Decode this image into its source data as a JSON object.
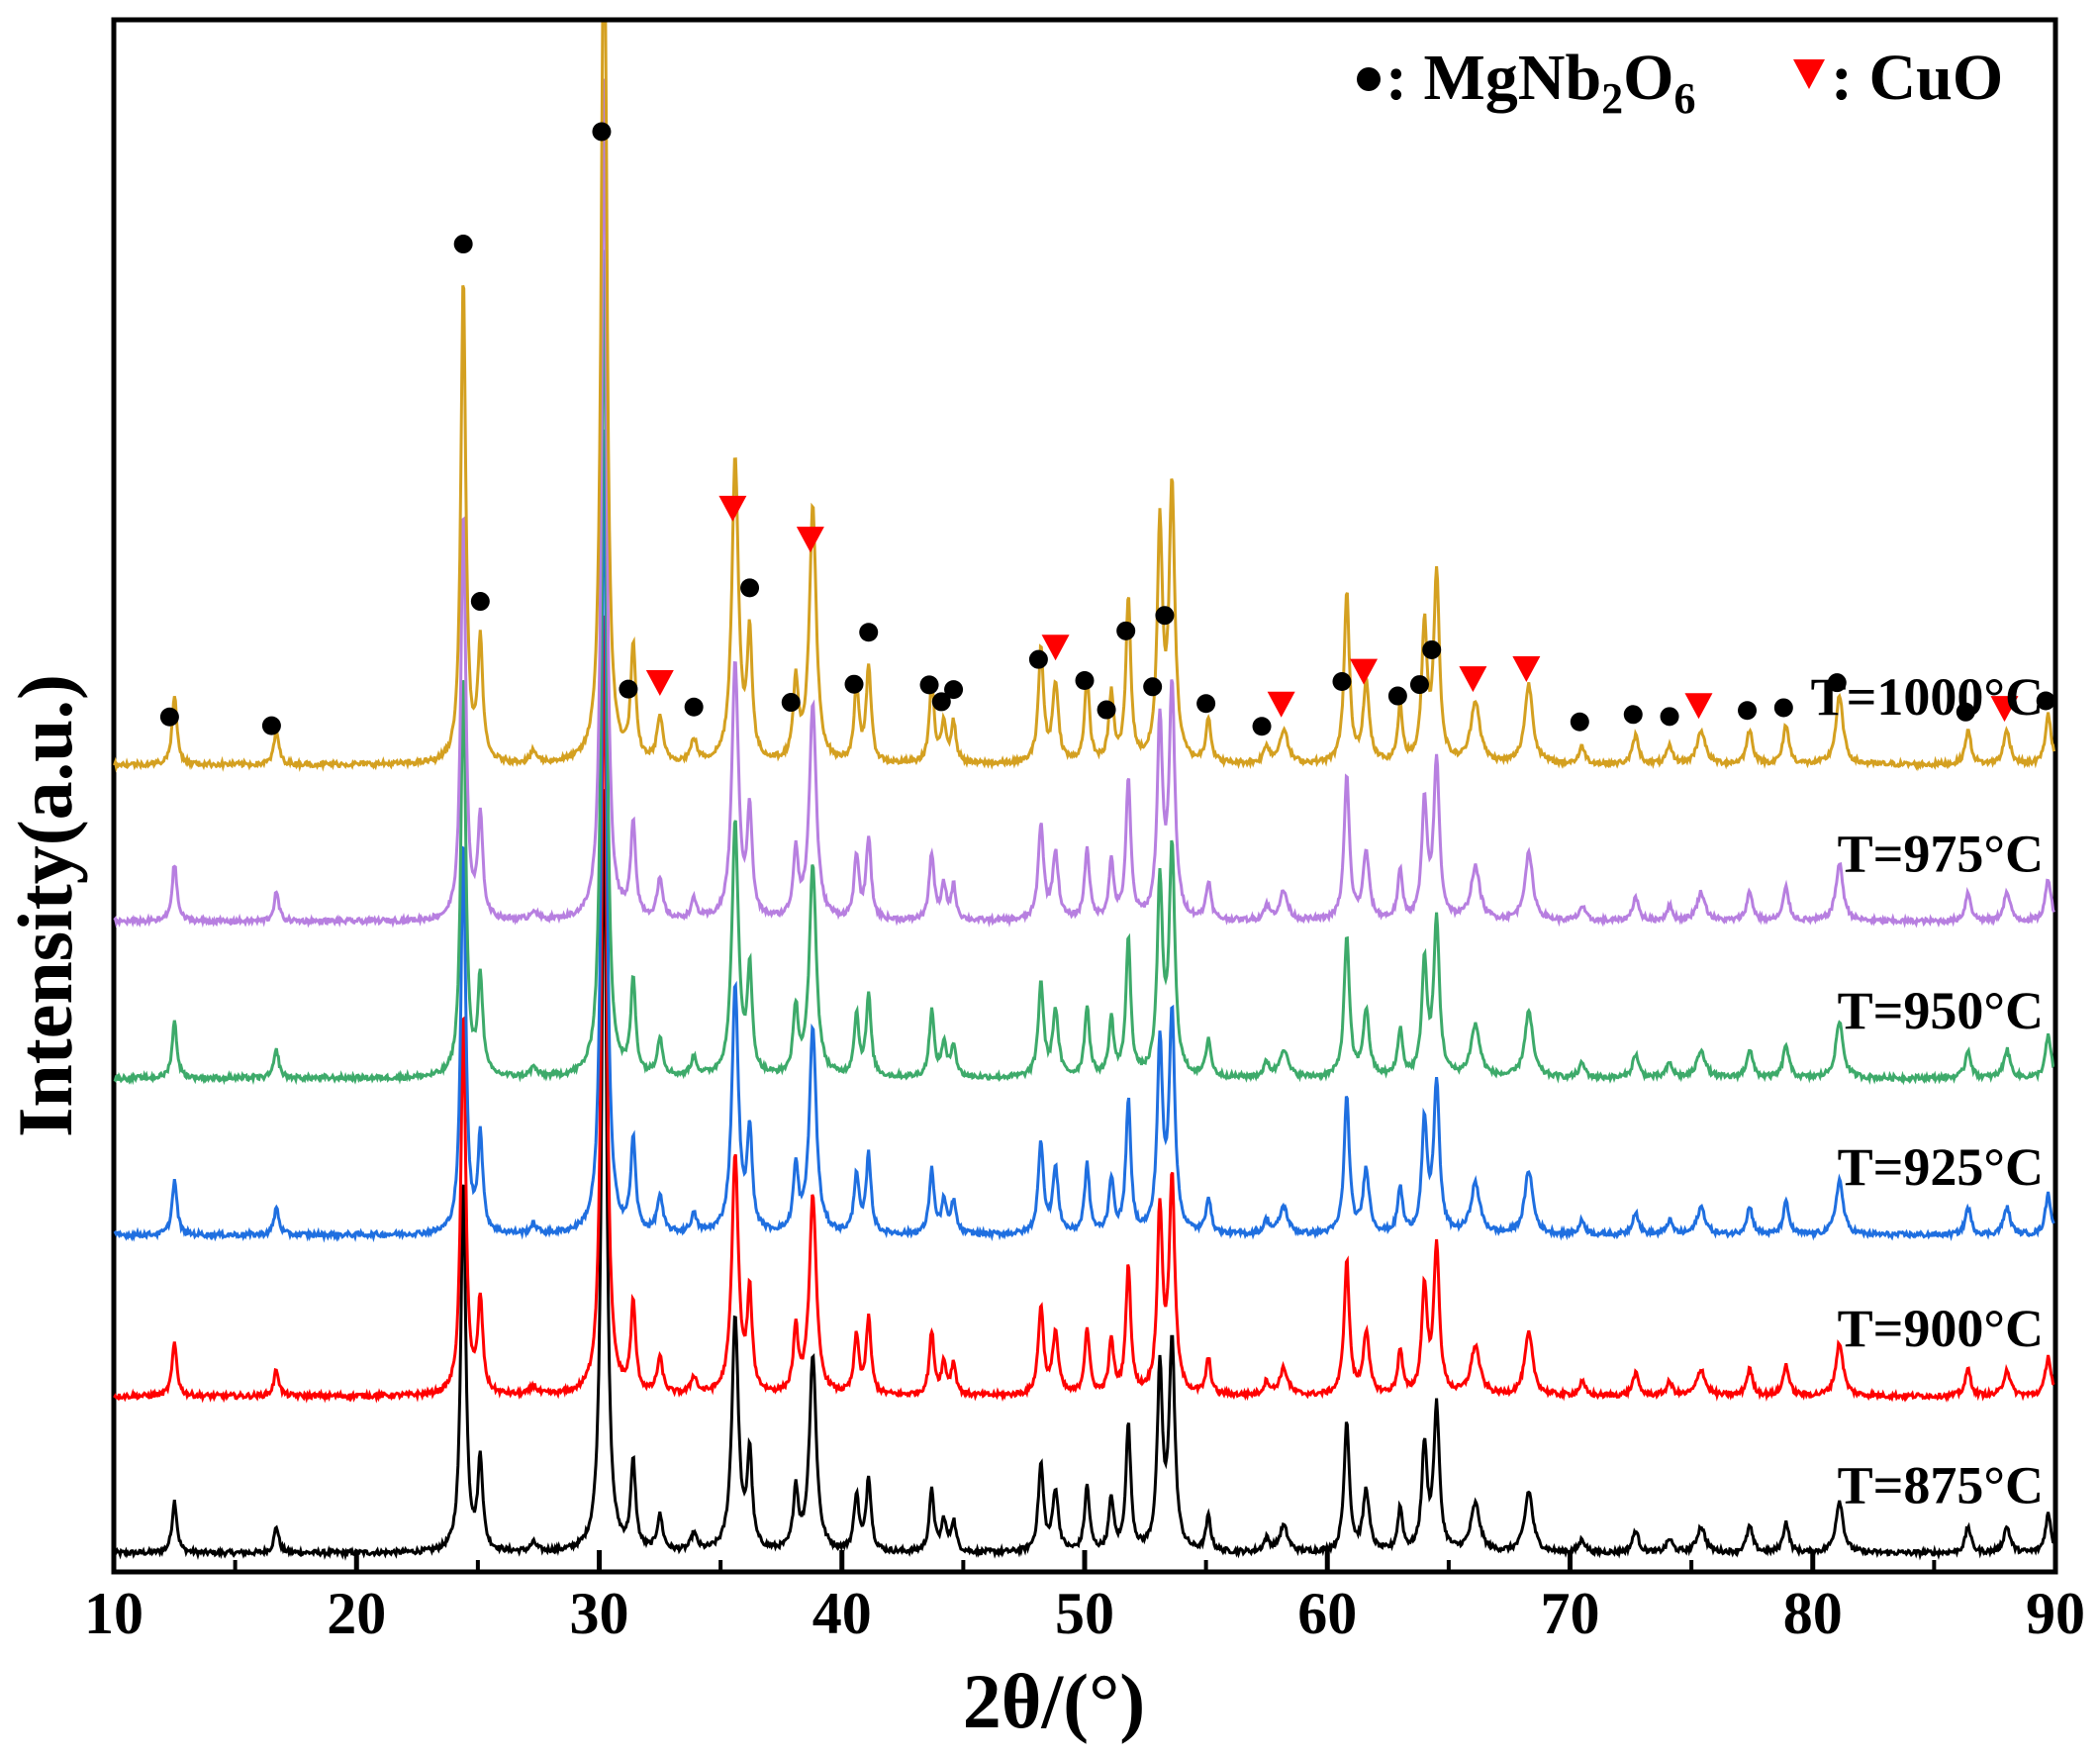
{
  "chart_data": {
    "type": "line",
    "title": "",
    "xlabel": "2θ/(°)",
    "ylabel": "Intensity(a.u.)",
    "xlim": [
      10,
      90
    ],
    "ylim": [
      0,
      36
    ],
    "xticks": [
      "10",
      "20",
      "30",
      "40",
      "50",
      "60",
      "70",
      "80",
      "90"
    ],
    "grid": false,
    "legend": {
      "placement": "top-right",
      "entries": [
        {
          "symbol": "black-dot",
          "label_main": "MgNb",
          "sub1": "2",
          "mid": "O",
          "sub2": "6",
          "prefix": ": ",
          "color": "#000000"
        },
        {
          "symbol": "red-down-triangle",
          "label_main": "CuO",
          "prefix": ": ",
          "color": "#ff0000"
        }
      ]
    },
    "series": [
      {
        "name": "T=875°C",
        "color": "#000000",
        "offset": 0,
        "scale": 1.0
      },
      {
        "name": "T=900°C",
        "color": "#ff0000",
        "offset": 3.6,
        "scale": 1.02
      },
      {
        "name": "T=925°C",
        "color": "#1f6fe0",
        "offset": 7.3,
        "scale": 1.05
      },
      {
        "name": "T=950°C",
        "color": "#3daa6a",
        "offset": 10.9,
        "scale": 1.08
      },
      {
        "name": "T=975°C",
        "color": "#b77fe0",
        "offset": 14.5,
        "scale": 1.1
      },
      {
        "name": "T=1000°C",
        "color": "#d4a020",
        "offset": 18.1,
        "scale": 1.3
      }
    ],
    "peaks": [
      {
        "pos": 12.5,
        "h": 1.2,
        "w": 0.12
      },
      {
        "pos": 16.7,
        "h": 0.6,
        "w": 0.12
      },
      {
        "pos": 24.4,
        "h": 8.6,
        "w": 0.12
      },
      {
        "pos": 25.1,
        "h": 2.1,
        "w": 0.12
      },
      {
        "pos": 27.3,
        "h": 0.2,
        "w": 0.15
      },
      {
        "pos": 30.2,
        "h": 18.0,
        "w": 0.12
      },
      {
        "pos": 31.4,
        "h": 2.0,
        "w": 0.12
      },
      {
        "pos": 32.5,
        "h": 0.8,
        "w": 0.14
      },
      {
        "pos": 33.9,
        "h": 0.4,
        "w": 0.14
      },
      {
        "pos": 35.6,
        "h": 5.4,
        "w": 0.16
      },
      {
        "pos": 36.2,
        "h": 2.2,
        "w": 0.12
      },
      {
        "pos": 38.1,
        "h": 1.4,
        "w": 0.12
      },
      {
        "pos": 38.8,
        "h": 4.5,
        "w": 0.17
      },
      {
        "pos": 40.6,
        "h": 1.3,
        "w": 0.12
      },
      {
        "pos": 41.1,
        "h": 1.7,
        "w": 0.12
      },
      {
        "pos": 43.7,
        "h": 1.4,
        "w": 0.12
      },
      {
        "pos": 44.2,
        "h": 0.7,
        "w": 0.12
      },
      {
        "pos": 44.6,
        "h": 0.7,
        "w": 0.12
      },
      {
        "pos": 48.2,
        "h": 2.0,
        "w": 0.13
      },
      {
        "pos": 48.8,
        "h": 1.4,
        "w": 0.14
      },
      {
        "pos": 50.1,
        "h": 1.5,
        "w": 0.12
      },
      {
        "pos": 51.1,
        "h": 1.2,
        "w": 0.12
      },
      {
        "pos": 51.8,
        "h": 2.9,
        "w": 0.12
      },
      {
        "pos": 53.1,
        "h": 4.1,
        "w": 0.13
      },
      {
        "pos": 53.6,
        "h": 4.8,
        "w": 0.14
      },
      {
        "pos": 55.1,
        "h": 0.8,
        "w": 0.12
      },
      {
        "pos": 57.5,
        "h": 0.3,
        "w": 0.14
      },
      {
        "pos": 58.2,
        "h": 0.6,
        "w": 0.2
      },
      {
        "pos": 60.8,
        "h": 3.0,
        "w": 0.13
      },
      {
        "pos": 61.6,
        "h": 1.4,
        "w": 0.15
      },
      {
        "pos": 63.0,
        "h": 1.0,
        "w": 0.12
      },
      {
        "pos": 64.0,
        "h": 2.4,
        "w": 0.13
      },
      {
        "pos": 64.5,
        "h": 3.3,
        "w": 0.14
      },
      {
        "pos": 66.1,
        "h": 1.1,
        "w": 0.22
      },
      {
        "pos": 68.3,
        "h": 1.4,
        "w": 0.2
      },
      {
        "pos": 70.5,
        "h": 0.3,
        "w": 0.15
      },
      {
        "pos": 72.7,
        "h": 0.5,
        "w": 0.15
      },
      {
        "pos": 74.1,
        "h": 0.3,
        "w": 0.15
      },
      {
        "pos": 75.4,
        "h": 0.6,
        "w": 0.2
      },
      {
        "pos": 77.4,
        "h": 0.6,
        "w": 0.15
      },
      {
        "pos": 78.9,
        "h": 0.7,
        "w": 0.14
      },
      {
        "pos": 81.1,
        "h": 1.2,
        "w": 0.18
      },
      {
        "pos": 86.4,
        "h": 0.6,
        "w": 0.14
      },
      {
        "pos": 88.0,
        "h": 0.6,
        "w": 0.16
      },
      {
        "pos": 89.7,
        "h": 0.9,
        "w": 0.14
      }
    ],
    "markers_1000C": [
      {
        "type": "MgNb2O6",
        "x": 12.3
      },
      {
        "type": "MgNb2O6",
        "x": 16.5
      },
      {
        "type": "MgNb2O6",
        "x": 24.4
      },
      {
        "type": "MgNb2O6",
        "x": 25.1
      },
      {
        "type": "MgNb2O6",
        "x": 30.1
      },
      {
        "type": "MgNb2O6",
        "x": 31.2
      },
      {
        "type": "CuO",
        "x": 32.5
      },
      {
        "type": "MgNb2O6",
        "x": 33.9
      },
      {
        "type": "CuO",
        "x": 35.5
      },
      {
        "type": "MgNb2O6",
        "x": 36.2
      },
      {
        "type": "MgNb2O6",
        "x": 37.9
      },
      {
        "type": "CuO",
        "x": 38.7
      },
      {
        "type": "MgNb2O6",
        "x": 40.5
      },
      {
        "type": "MgNb2O6",
        "x": 41.1
      },
      {
        "type": "MgNb2O6",
        "x": 43.6
      },
      {
        "type": "MgNb2O6",
        "x": 44.1
      },
      {
        "type": "MgNb2O6",
        "x": 44.6
      },
      {
        "type": "MgNb2O6",
        "x": 48.1
      },
      {
        "type": "CuO",
        "x": 48.8
      },
      {
        "type": "MgNb2O6",
        "x": 50.0
      },
      {
        "type": "MgNb2O6",
        "x": 50.9
      },
      {
        "type": "MgNb2O6",
        "x": 51.7
      },
      {
        "type": "MgNb2O6",
        "x": 52.8
      },
      {
        "type": "MgNb2O6",
        "x": 53.3
      },
      {
        "type": "MgNb2O6",
        "x": 55.0
      },
      {
        "type": "MgNb2O6",
        "x": 57.3
      },
      {
        "type": "CuO",
        "x": 58.1
      },
      {
        "type": "MgNb2O6",
        "x": 60.6
      },
      {
        "type": "CuO",
        "x": 61.5
      },
      {
        "type": "MgNb2O6",
        "x": 62.9
      },
      {
        "type": "MgNb2O6",
        "x": 63.8
      },
      {
        "type": "MgNb2O6",
        "x": 64.3
      },
      {
        "type": "CuO",
        "x": 66.0
      },
      {
        "type": "CuO",
        "x": 68.2
      },
      {
        "type": "MgNb2O6",
        "x": 70.4
      },
      {
        "type": "MgNb2O6",
        "x": 72.6
      },
      {
        "type": "MgNb2O6",
        "x": 74.1
      },
      {
        "type": "CuO",
        "x": 75.3
      },
      {
        "type": "MgNb2O6",
        "x": 77.3
      },
      {
        "type": "MgNb2O6",
        "x": 78.8
      },
      {
        "type": "MgNb2O6",
        "x": 81.0
      },
      {
        "type": "MgNb2O6",
        "x": 86.3
      },
      {
        "type": "CuO",
        "x": 87.9
      },
      {
        "type": "MgNb2O6",
        "x": 89.6
      }
    ]
  }
}
